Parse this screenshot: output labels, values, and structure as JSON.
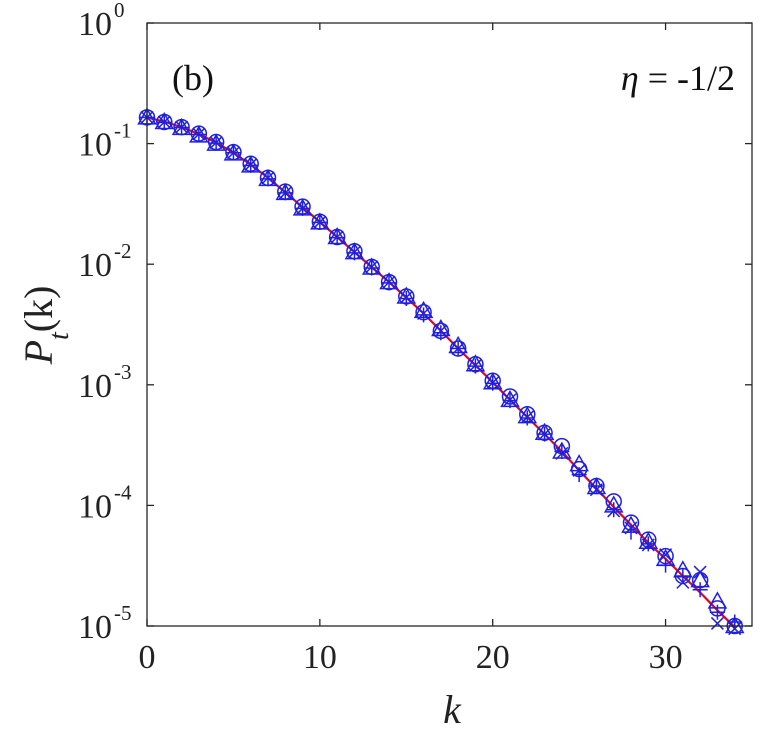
{
  "chart_data": {
    "type": "scatter",
    "panel_label": "(b)",
    "annotation": "η = -1/2",
    "annotation_symbol": "η",
    "annotation_value": " = -1/2",
    "xlabel": "k",
    "ylabel_main": "P",
    "ylabel_sub": "t",
    "ylabel_arg": "(k)",
    "xlim": [
      0,
      35
    ],
    "ylim": [
      1e-05,
      1
    ],
    "yscale": "log",
    "x_ticks": [
      {
        "value": 0,
        "label": "0"
      },
      {
        "value": 10,
        "label": "10"
      },
      {
        "value": 20,
        "label": "20"
      },
      {
        "value": 30,
        "label": "30"
      }
    ],
    "y_ticks": [
      {
        "value": 1,
        "base": "10",
        "exp": "0"
      },
      {
        "value": 0.1,
        "base": "10",
        "exp": "-1"
      },
      {
        "value": 0.01,
        "base": "10",
        "exp": "-2"
      },
      {
        "value": 0.001,
        "base": "10",
        "exp": "-3"
      },
      {
        "value": 0.0001,
        "base": "10",
        "exp": "-4"
      },
      {
        "value": 1e-05,
        "base": "10",
        "exp": "-5"
      }
    ],
    "grid": false,
    "colors": {
      "markers": "#1f1fe0",
      "fit": "#e8001e"
    },
    "fit_curve": {
      "x": [
        0,
        1,
        2,
        3,
        4,
        5,
        6,
        7,
        8,
        9,
        10,
        11,
        12,
        13,
        14,
        15,
        16,
        17,
        18,
        19,
        20,
        21,
        22,
        23,
        24,
        25,
        26,
        27,
        28,
        29,
        30,
        31,
        32,
        33,
        34
      ],
      "y": [
        0.165,
        0.152,
        0.137,
        0.12,
        0.102,
        0.084,
        0.067,
        0.052,
        0.0395,
        0.0297,
        0.0224,
        0.0168,
        0.0126,
        0.00945,
        0.0071,
        0.0053,
        0.0039,
        0.0028,
        0.002,
        0.00145,
        0.00105,
        0.00075,
        0.00054,
        0.00039,
        0.00028,
        0.000195,
        0.000138,
        9.7e-05,
        6.9e-05,
        4.9e-05,
        3.6e-05,
        2.6e-05,
        1.9e-05,
        1.35e-05,
        9.8e-06
      ]
    },
    "series": [
      {
        "marker": "circle",
        "x": [
          0,
          1,
          2,
          3,
          4,
          5,
          6,
          7,
          8,
          9,
          10,
          11,
          12,
          13,
          14,
          15,
          16,
          17,
          18,
          19,
          20,
          21,
          22,
          23,
          24,
          25,
          26,
          27,
          28,
          29,
          30,
          31,
          32,
          33,
          34
        ],
        "y": [
          0.165,
          0.151,
          0.137,
          0.121,
          0.103,
          0.085,
          0.068,
          0.052,
          0.04,
          0.03,
          0.0225,
          0.0168,
          0.0128,
          0.0095,
          0.0071,
          0.0054,
          0.004,
          0.0028,
          0.002,
          0.00148,
          0.00108,
          0.0008,
          0.00057,
          0.0004,
          0.00031,
          0.0002,
          0.000145,
          0.000108,
          7.2e-05,
          5.2e-05,
          3.8e-05,
          2.6e-05,
          2.4e-05,
          1.4e-05,
          1e-05
        ]
      },
      {
        "marker": "triangle",
        "x": [
          0,
          1,
          2,
          3,
          4,
          5,
          6,
          7,
          8,
          9,
          10,
          11,
          12,
          13,
          14,
          15,
          16,
          17,
          18,
          19,
          20,
          21,
          22,
          23,
          24,
          25,
          26,
          27,
          28,
          29,
          30,
          31,
          32,
          33,
          34
        ],
        "y": [
          0.165,
          0.151,
          0.135,
          0.117,
          0.1,
          0.083,
          0.066,
          0.051,
          0.039,
          0.029,
          0.0222,
          0.0168,
          0.0126,
          0.0094,
          0.0071,
          0.0054,
          0.0041,
          0.0029,
          0.0021,
          0.00148,
          0.00105,
          0.00075,
          0.00055,
          0.0004,
          0.00028,
          0.00022,
          0.000142,
          0.0001,
          6.8e-05,
          5e-05,
          3.6e-05,
          2.9e-05,
          2.4e-05,
          1.6e-05,
          1e-05
        ]
      },
      {
        "marker": "plus",
        "x": [
          0,
          1,
          2,
          3,
          4,
          5,
          6,
          7,
          8,
          9,
          10,
          11,
          12,
          13,
          14,
          15,
          16,
          17,
          18,
          19,
          20,
          21,
          22,
          23,
          24,
          25,
          26,
          27,
          28,
          29,
          30,
          31,
          32,
          33,
          34
        ],
        "y": [
          0.165,
          0.15,
          0.136,
          0.119,
          0.101,
          0.084,
          0.066,
          0.051,
          0.039,
          0.029,
          0.0222,
          0.0166,
          0.0124,
          0.0093,
          0.007,
          0.0052,
          0.0038,
          0.0027,
          0.002,
          0.00143,
          0.00103,
          0.00074,
          0.00053,
          0.00039,
          0.00028,
          0.00018,
          0.000145,
          9.2e-05,
          6e-05,
          4.8e-05,
          3.2e-05,
          2.6e-05,
          2e-05,
          1.3e-05,
          1.08e-05
        ]
      },
      {
        "marker": "cross",
        "x": [
          0,
          1,
          2,
          3,
          4,
          5,
          6,
          7,
          8,
          9,
          10,
          11,
          12,
          13,
          14,
          15,
          16,
          17,
          18,
          19,
          20,
          21,
          22,
          23,
          24,
          25,
          26,
          27,
          28,
          29,
          30,
          31,
          32,
          33,
          34
        ],
        "y": [
          0.165,
          0.151,
          0.137,
          0.12,
          0.102,
          0.084,
          0.067,
          0.052,
          0.039,
          0.029,
          0.0223,
          0.0168,
          0.0126,
          0.0095,
          0.0071,
          0.0053,
          0.0039,
          0.0028,
          0.002,
          0.00145,
          0.00104,
          0.00075,
          0.00054,
          0.00039,
          0.00027,
          0.000195,
          0.000135,
          9e-05,
          6.5e-05,
          4.7e-05,
          3.9e-05,
          2.3e-05,
          2.8e-05,
          1.05e-05,
          9.5e-06
        ]
      }
    ]
  }
}
